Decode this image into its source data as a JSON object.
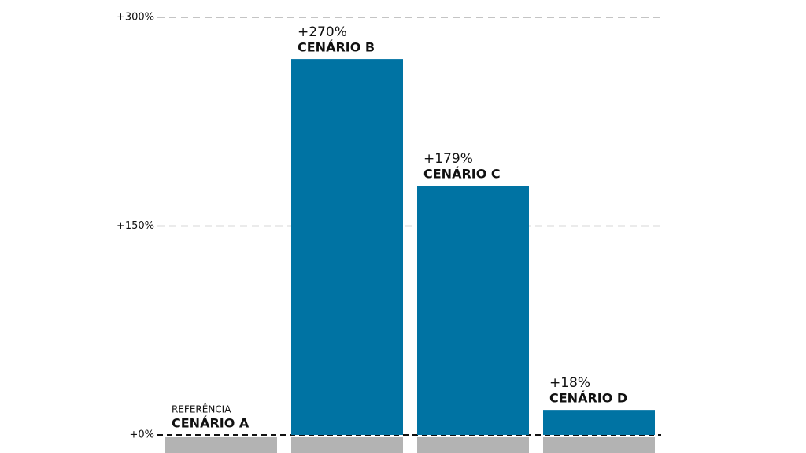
{
  "chart_data": {
    "type": "bar",
    "categories": [
      "CENÁRIO A",
      "CENÁRIO B",
      "CENÁRIO C",
      "CENÁRIO D"
    ],
    "values": [
      0,
      270,
      179,
      18
    ],
    "value_labels": [
      null,
      "+270%",
      "+179%",
      "+18%"
    ],
    "reference_label": "REFERÊNCIA",
    "color": "#0073a3",
    "ylim": [
      0,
      300
    ],
    "yticks": [
      {
        "value": 0,
        "label": "+0%"
      },
      {
        "value": 150,
        "label": "+150%"
      },
      {
        "value": 300,
        "label": "+300%"
      }
    ],
    "grid": true
  }
}
